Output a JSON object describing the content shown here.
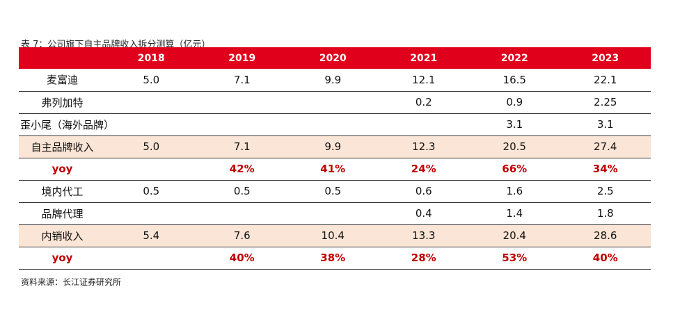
{
  "caption": "表 7：公司旗下自主品牌收入拆分测算（亿元）",
  "source": "资料来源：长江证券研究所",
  "columns": [
    "",
    "2018",
    "2019",
    "2020",
    "2021",
    "2022",
    "2023"
  ],
  "rows": [
    {
      "label": "麦富迪",
      "values": [
        "5.0",
        "7.1",
        "9.9",
        "12.1",
        "16.5",
        "22.1"
      ],
      "type": "normal"
    },
    {
      "label": "弗列加特",
      "values": [
        "",
        "",
        "",
        "0.2",
        "0.9",
        "2.25"
      ],
      "type": "normal"
    },
    {
      "label": "歪小尾（海外品牌）",
      "values": [
        "",
        "",
        "",
        "",
        "3.1",
        "3.1"
      ],
      "type": "normal"
    },
    {
      "label": "自主品牌收入",
      "values": [
        "5.0",
        "7.1",
        "9.9",
        "12.3",
        "20.5",
        "27.4"
      ],
      "type": "sub"
    },
    {
      "label": "yoy",
      "values": [
        "",
        "42%",
        "41%",
        "24%",
        "66%",
        "34%"
      ],
      "type": "yoy"
    },
    {
      "label": "境内代工",
      "values": [
        "0.5",
        "0.5",
        "0.5",
        "0.6",
        "1.6",
        "2.5"
      ],
      "type": "normal"
    },
    {
      "label": "品牌代理",
      "values": [
        "",
        "",
        "",
        "0.4",
        "1.4",
        "1.8"
      ],
      "type": "normal"
    },
    {
      "label": "内销收入",
      "values": [
        "5.4",
        "7.6",
        "10.4",
        "13.3",
        "20.4",
        "28.6"
      ],
      "type": "sub"
    },
    {
      "label": "yoy",
      "values": [
        "",
        "40%",
        "38%",
        "28%",
        "53%",
        "40%"
      ],
      "type": "yoy"
    }
  ]
}
